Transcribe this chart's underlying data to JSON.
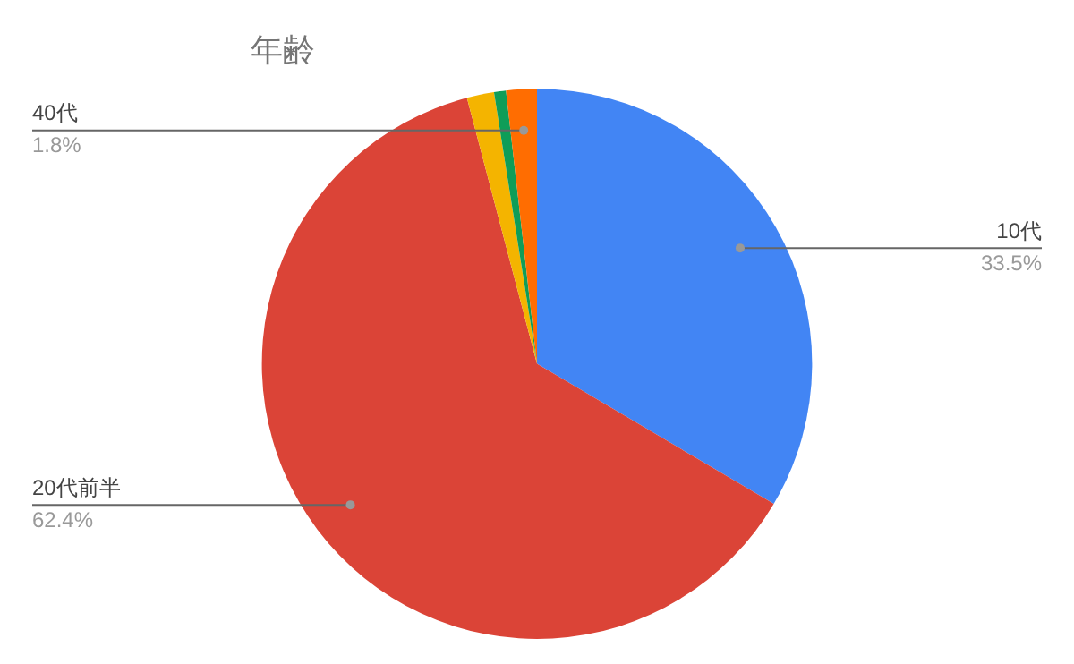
{
  "chart_data": {
    "type": "pie",
    "title": "年齢",
    "categories": [
      "10代",
      "20代前半",
      null,
      null,
      "40代"
    ],
    "values": [
      33.5,
      62.4,
      1.6,
      0.7,
      1.8
    ],
    "value_labels": [
      "33.5%",
      "62.4%",
      null,
      null,
      "1.8%"
    ],
    "colors": [
      "#4285f4",
      "#db4437",
      "#f4b400",
      "#0f9d58",
      "#ff6d01"
    ],
    "legend": false
  }
}
